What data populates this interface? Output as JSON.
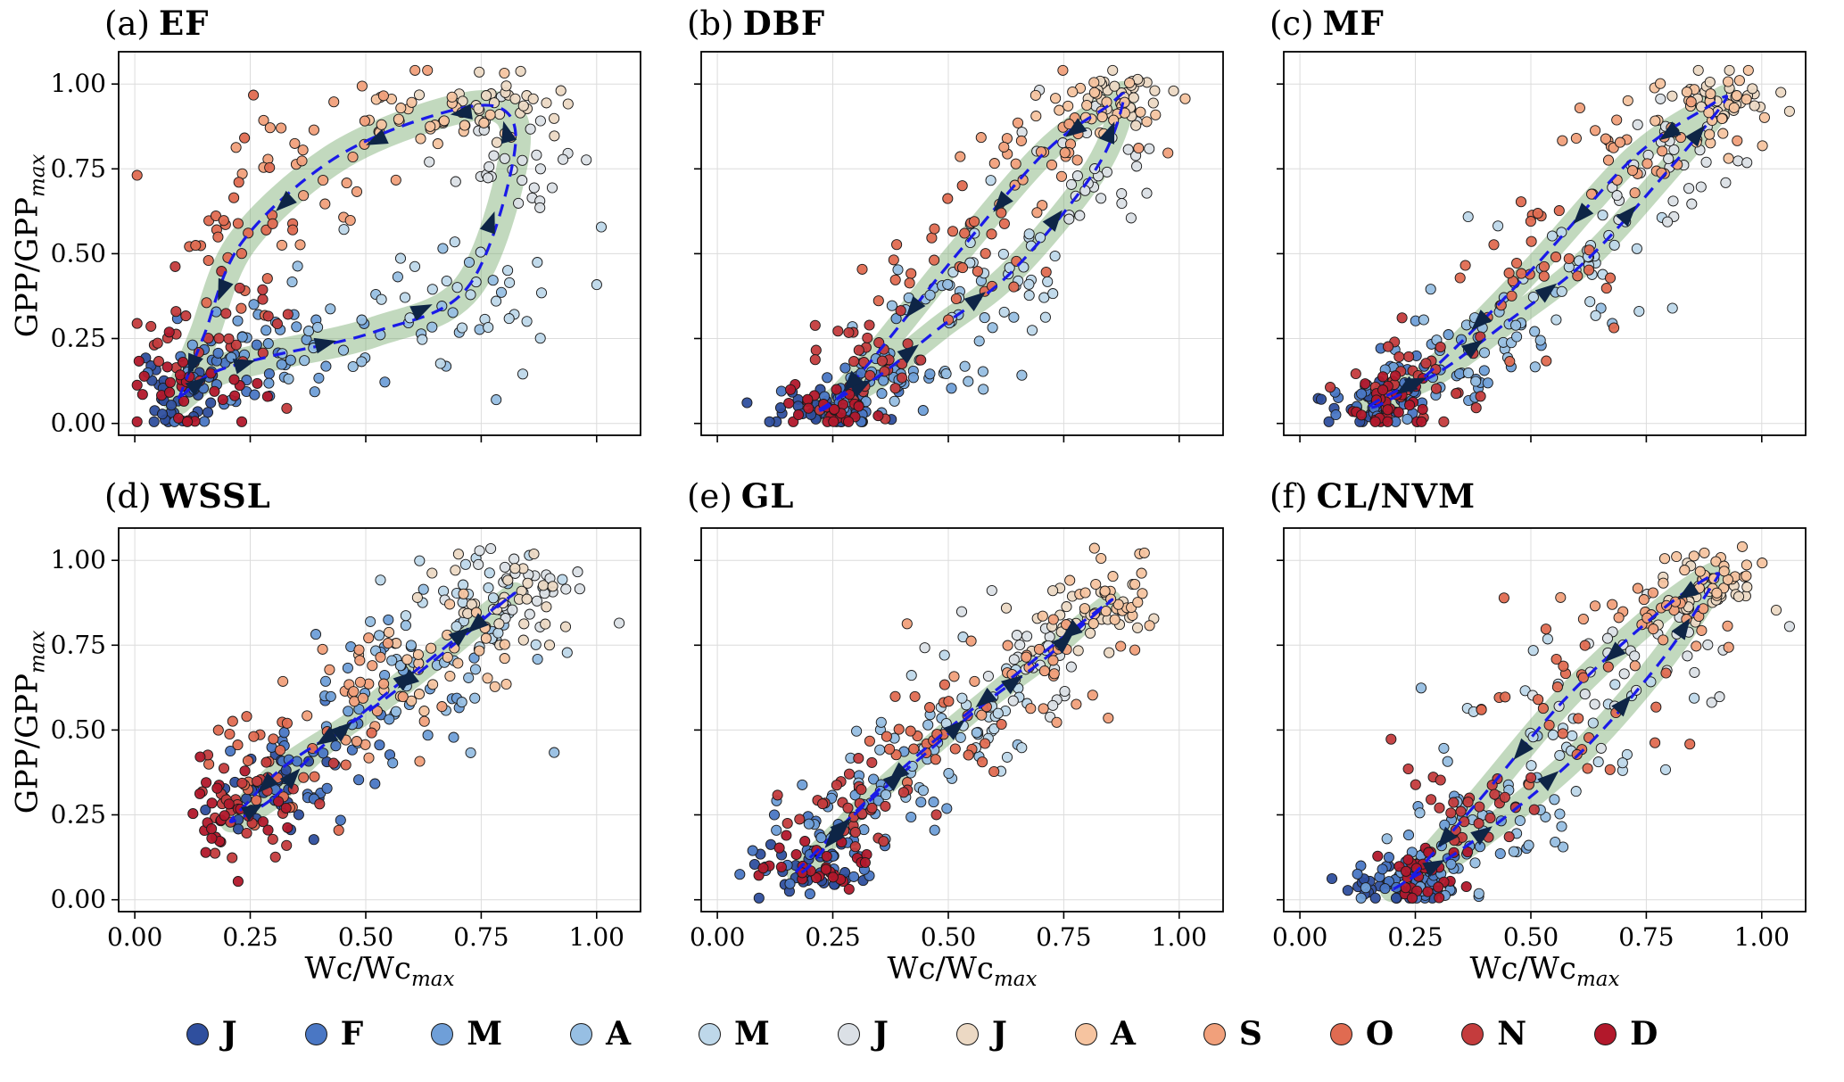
{
  "figure": {
    "axis": {
      "ticks": [
        0,
        0.25,
        0.5,
        0.75,
        1
      ],
      "tick_labels": [
        "0.00",
        "0.25",
        "0.50",
        "0.75",
        "1.00"
      ],
      "xlim": [
        -0.035,
        1.095
      ],
      "ylim": [
        -0.035,
        1.095
      ],
      "grid_color": "#dcdcdc"
    },
    "labels": {
      "y_main": "GPP/GPP",
      "x_main": "Wc/Wc",
      "sub": "max"
    },
    "style": {
      "loop_line_color": "#1a1ae8",
      "band_color": "rgba(110,165,100,0.42)",
      "arrow_color": "#0e2546",
      "point_stroke": "#1a1a1a",
      "frame_color": "#000000"
    }
  },
  "months": [
    {
      "label": "J",
      "color": "#2f4f9e"
    },
    {
      "label": "F",
      "color": "#4a77c4"
    },
    {
      "label": "M",
      "color": "#6f9fd8"
    },
    {
      "label": "A",
      "color": "#97bfe3"
    },
    {
      "label": "M",
      "color": "#bed8ea"
    },
    {
      "label": "J",
      "color": "#dbe0e6"
    },
    {
      "label": "J",
      "color": "#ecd9c4"
    },
    {
      "label": "A",
      "color": "#f6c4a0"
    },
    {
      "label": "S",
      "color": "#f1a07b"
    },
    {
      "label": "O",
      "color": "#e06b51"
    },
    {
      "label": "N",
      "color": "#c43c3d"
    },
    {
      "label": "D",
      "color": "#b2182b"
    }
  ],
  "chart_data": [
    {
      "id": "a",
      "type": "scatter",
      "title_prefix": "(a)",
      "title": "EF",
      "xlabel": "Wc/Wcmax",
      "ylabel": "GPP/GPPmax",
      "month_order": [
        "J",
        "F",
        "M",
        "A",
        "M",
        "J",
        "J",
        "A",
        "S",
        "O",
        "N",
        "D"
      ],
      "loop": {
        "x": [
          0.1,
          0.17,
          0.3,
          0.52,
          0.72,
          0.82,
          0.79,
          0.63,
          0.42,
          0.23,
          0.15,
          0.1
        ],
        "y": [
          0.08,
          0.15,
          0.2,
          0.27,
          0.4,
          0.78,
          0.93,
          0.9,
          0.77,
          0.53,
          0.26,
          0.09
        ]
      },
      "spread_x": [
        0.05,
        0.06,
        0.09,
        0.12,
        0.1,
        0.08,
        0.07,
        0.1,
        0.09,
        0.07,
        0.09,
        0.08
      ],
      "spread_y": [
        0.05,
        0.07,
        0.08,
        0.1,
        0.1,
        0.08,
        0.05,
        0.08,
        0.12,
        0.14,
        0.1,
        0.06
      ],
      "n_per_month": 30,
      "band_width": 34,
      "seed": 11
    },
    {
      "id": "b",
      "type": "scatter",
      "title_prefix": "(b)",
      "title": "DBF",
      "xlabel": "Wc/Wcmax",
      "ylabel": "GPP/GPPmax",
      "month_order": [
        "J",
        "F",
        "M",
        "A",
        "M",
        "J",
        "J",
        "A",
        "S",
        "O",
        "N",
        "D"
      ],
      "loop": {
        "x": [
          0.22,
          0.27,
          0.35,
          0.48,
          0.64,
          0.82,
          0.88,
          0.84,
          0.71,
          0.52,
          0.33,
          0.25
        ],
        "y": [
          0.04,
          0.08,
          0.14,
          0.28,
          0.45,
          0.75,
          0.96,
          0.93,
          0.8,
          0.5,
          0.18,
          0.06
        ]
      },
      "spread_x": [
        0.05,
        0.05,
        0.07,
        0.09,
        0.09,
        0.07,
        0.05,
        0.06,
        0.08,
        0.09,
        0.07,
        0.05
      ],
      "spread_y": [
        0.03,
        0.04,
        0.06,
        0.09,
        0.1,
        0.09,
        0.04,
        0.05,
        0.08,
        0.1,
        0.07,
        0.04
      ],
      "n_per_month": 30,
      "band_width": 28,
      "seed": 22
    },
    {
      "id": "c",
      "type": "scatter",
      "title_prefix": "(c)",
      "title": "MF",
      "xlabel": "Wc/Wcmax",
      "ylabel": "GPP/GPPmax",
      "month_order": [
        "J",
        "F",
        "M",
        "A",
        "M",
        "J",
        "J",
        "A",
        "S",
        "O",
        "N",
        "D"
      ],
      "loop": {
        "x": [
          0.15,
          0.2,
          0.3,
          0.45,
          0.62,
          0.8,
          0.92,
          0.88,
          0.72,
          0.5,
          0.28,
          0.18
        ],
        "y": [
          0.05,
          0.09,
          0.15,
          0.3,
          0.48,
          0.75,
          0.95,
          0.93,
          0.78,
          0.45,
          0.15,
          0.06
        ]
      },
      "spread_x": [
        0.05,
        0.06,
        0.08,
        0.1,
        0.1,
        0.08,
        0.05,
        0.07,
        0.09,
        0.09,
        0.07,
        0.05
      ],
      "spread_y": [
        0.03,
        0.05,
        0.07,
        0.1,
        0.1,
        0.09,
        0.04,
        0.06,
        0.09,
        0.11,
        0.07,
        0.04
      ],
      "n_per_month": 30,
      "band_width": 26,
      "seed": 33
    },
    {
      "id": "d",
      "type": "scatter",
      "title_prefix": "(d)",
      "title": "WSSL",
      "xlabel": "Wc/Wcmax",
      "ylabel": "GPP/GPPmax",
      "month_order": [
        "J",
        "F",
        "M",
        "A",
        "M",
        "J",
        "J",
        "A",
        "S",
        "O",
        "N",
        "D"
      ],
      "loop": {
        "x": [
          0.3,
          0.38,
          0.52,
          0.65,
          0.76,
          0.82,
          0.8,
          0.68,
          0.5,
          0.33,
          0.24,
          0.21
        ],
        "y": [
          0.3,
          0.42,
          0.58,
          0.72,
          0.84,
          0.9,
          0.88,
          0.74,
          0.55,
          0.4,
          0.28,
          0.23
        ]
      },
      "spread_x": [
        0.08,
        0.09,
        0.1,
        0.1,
        0.09,
        0.07,
        0.08,
        0.09,
        0.09,
        0.08,
        0.07,
        0.06
      ],
      "spread_y": [
        0.08,
        0.09,
        0.1,
        0.09,
        0.07,
        0.06,
        0.07,
        0.08,
        0.1,
        0.1,
        0.08,
        0.07
      ],
      "n_per_month": 30,
      "band_width": 24,
      "seed": 44
    },
    {
      "id": "e",
      "type": "scatter",
      "title_prefix": "(e)",
      "title": "GL",
      "xlabel": "Wc/Wcmax",
      "ylabel": "GPP/GPPmax",
      "month_order": [
        "J",
        "F",
        "M",
        "A",
        "M",
        "J",
        "J",
        "A",
        "S",
        "O",
        "N",
        "D"
      ],
      "loop": {
        "x": [
          0.17,
          0.22,
          0.32,
          0.45,
          0.58,
          0.7,
          0.8,
          0.85,
          0.68,
          0.48,
          0.3,
          0.2
        ],
        "y": [
          0.08,
          0.15,
          0.28,
          0.43,
          0.58,
          0.7,
          0.82,
          0.88,
          0.7,
          0.48,
          0.26,
          0.1
        ]
      },
      "spread_x": [
        0.06,
        0.07,
        0.08,
        0.09,
        0.09,
        0.09,
        0.07,
        0.06,
        0.09,
        0.09,
        0.07,
        0.06
      ],
      "spread_y": [
        0.04,
        0.06,
        0.07,
        0.08,
        0.09,
        0.09,
        0.07,
        0.06,
        0.08,
        0.08,
        0.06,
        0.04
      ],
      "n_per_month": 30,
      "band_width": 20,
      "seed": 55
    },
    {
      "id": "f",
      "type": "scatter",
      "title_prefix": "(f)",
      "title": "CL/NVM",
      "xlabel": "Wc/Wcmax",
      "ylabel": "GPP/GPPmax",
      "month_order": [
        "J",
        "F",
        "M",
        "A",
        "M",
        "J",
        "J",
        "A",
        "S",
        "O",
        "N",
        "D"
      ],
      "loop": {
        "x": [
          0.2,
          0.25,
          0.33,
          0.46,
          0.62,
          0.78,
          0.88,
          0.9,
          0.78,
          0.58,
          0.38,
          0.25
        ],
        "y": [
          0.03,
          0.07,
          0.13,
          0.26,
          0.45,
          0.7,
          0.9,
          0.96,
          0.85,
          0.6,
          0.28,
          0.08
        ]
      },
      "spread_x": [
        0.05,
        0.06,
        0.08,
        0.1,
        0.11,
        0.1,
        0.06,
        0.05,
        0.08,
        0.1,
        0.08,
        0.06
      ],
      "spread_y": [
        0.02,
        0.04,
        0.07,
        0.1,
        0.11,
        0.1,
        0.05,
        0.04,
        0.07,
        0.1,
        0.08,
        0.04
      ],
      "n_per_month": 30,
      "band_width": 28,
      "seed": 66
    }
  ]
}
